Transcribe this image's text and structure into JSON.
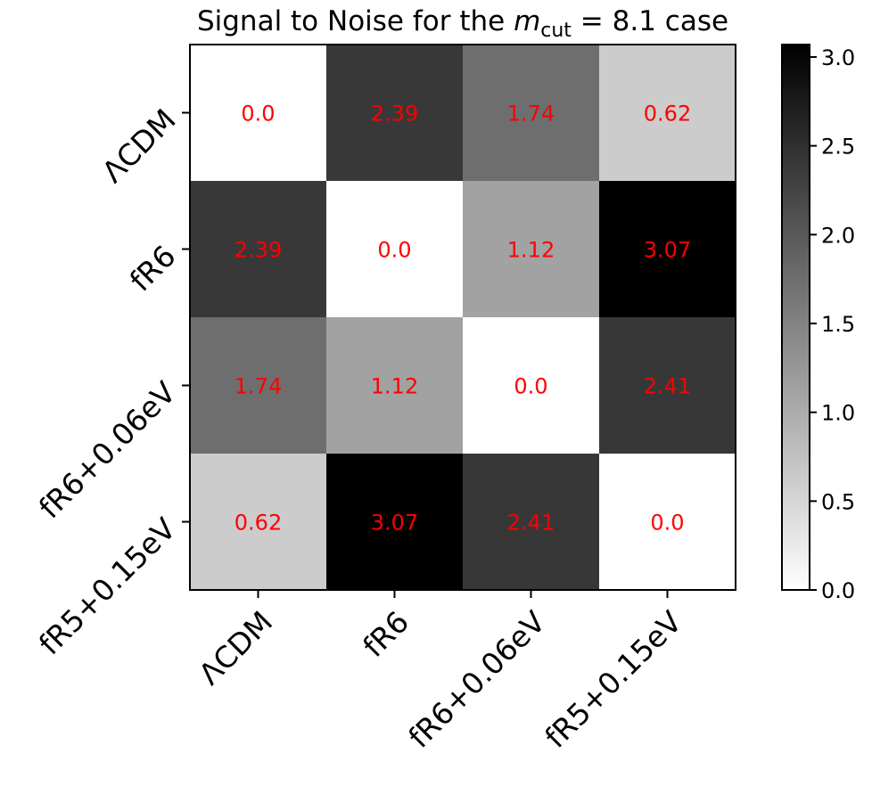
{
  "chart_data": {
    "type": "heatmap",
    "title_prefix": "Signal to Noise for the ",
    "title_math_var": "m",
    "title_math_sub": "cut",
    "title_suffix": " = 8.1 case",
    "x_categories": [
      "ΛCDM",
      "fR6",
      "fR6+0.06eV",
      "fR5+0.15eV"
    ],
    "y_categories": [
      "ΛCDM",
      "fR6",
      "fR6+0.06eV",
      "fR5+0.15eV"
    ],
    "values": [
      [
        0.0,
        2.39,
        1.74,
        0.62
      ],
      [
        2.39,
        0.0,
        1.12,
        3.07
      ],
      [
        1.74,
        1.12,
        0.0,
        2.41
      ],
      [
        0.62,
        3.07,
        2.41,
        0.0
      ]
    ],
    "cell_labels": [
      [
        "0.0",
        "2.39",
        "1.74",
        "0.62"
      ],
      [
        "2.39",
        "0.0",
        "1.12",
        "3.07"
      ],
      [
        "1.74",
        "1.12",
        "0.0",
        "2.41"
      ],
      [
        "0.62",
        "3.07",
        "2.41",
        "0.0"
      ]
    ],
    "colormap": "Greys",
    "vmin": 0.0,
    "vmax": 3.07,
    "colorbar_ticks": [
      0.0,
      0.5,
      1.0,
      1.5,
      2.0,
      2.5,
      3.0
    ],
    "colorbar_tick_labels": [
      "0.0",
      "0.5",
      "1.0",
      "1.5",
      "2.0",
      "2.5",
      "3.0"
    ],
    "annotation_color": "#ff0000",
    "grid": false
  }
}
